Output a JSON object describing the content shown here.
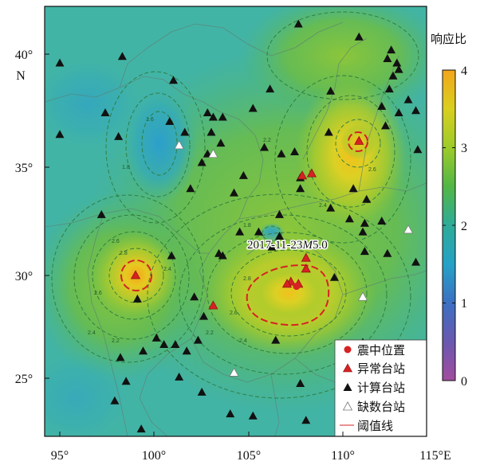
{
  "map": {
    "x_ticks": [
      "95°",
      "100°",
      "105°",
      "110°",
      "115°E"
    ],
    "y_ticks": [
      "40°",
      "35°",
      "30°",
      "25°"
    ],
    "y_unit": "N",
    "lon_range": [
      94.2,
      114.4
    ],
    "lat_range": [
      22.6,
      42.4
    ]
  },
  "colorbar": {
    "title": "响应比",
    "ticks": [
      "4",
      "3",
      "2",
      "1",
      "0"
    ],
    "range": [
      0,
      4
    ],
    "colors": [
      "#f2a61c",
      "#d9cf1e",
      "#9ccb2a",
      "#52b646",
      "#2eab98",
      "#25a2c6",
      "#3b6fc2",
      "#6a58b0",
      "#a24c9e"
    ]
  },
  "annotation": {
    "date": "2017-11-23",
    "mag_letter": "M",
    "mag": "5.0"
  },
  "epicenter": {
    "lon": 107.5,
    "lat": 29.5
  },
  "stations": {
    "abnormal": [
      [
        110.8,
        36.2
      ],
      [
        108.3,
        34.7
      ],
      [
        107.8,
        34.6
      ],
      [
        99.0,
        30.0
      ],
      [
        103.1,
        28.6
      ],
      [
        108.0,
        30.8
      ],
      [
        108.0,
        30.3
      ],
      [
        107.2,
        29.7
      ],
      [
        107.6,
        29.6
      ],
      [
        107.0,
        29.6
      ]
    ],
    "calculated": [
      [
        95.0,
        39.8
      ],
      [
        98.3,
        40.1
      ],
      [
        101.0,
        39.0
      ],
      [
        97.4,
        37.5
      ],
      [
        95.0,
        36.5
      ],
      [
        98.1,
        36.4
      ],
      [
        100.8,
        37.1
      ],
      [
        101.6,
        36.6
      ],
      [
        102.8,
        37.5
      ],
      [
        103.1,
        37.3
      ],
      [
        103.6,
        37.3
      ],
      [
        103.0,
        36.6
      ],
      [
        103.5,
        36.1
      ],
      [
        102.5,
        35.2
      ],
      [
        102.8,
        35.6
      ],
      [
        101.9,
        34.0
      ],
      [
        104.2,
        33.8
      ],
      [
        104.7,
        34.6
      ],
      [
        105.2,
        37.7
      ],
      [
        106.1,
        38.6
      ],
      [
        107.6,
        41.6
      ],
      [
        110.8,
        41.0
      ],
      [
        112.5,
        40.4
      ],
      [
        112.3,
        40.0
      ],
      [
        112.8,
        39.8
      ],
      [
        112.9,
        39.5
      ],
      [
        112.6,
        39.2
      ],
      [
        112.4,
        38.6
      ],
      [
        113.4,
        38.1
      ],
      [
        112.0,
        37.8
      ],
      [
        112.9,
        37.5
      ],
      [
        113.8,
        37.6
      ],
      [
        113.9,
        35.8
      ],
      [
        112.2,
        36.9
      ],
      [
        109.3,
        38.5
      ],
      [
        105.8,
        35.9
      ],
      [
        106.7,
        35.6
      ],
      [
        107.4,
        35.7
      ],
      [
        109.2,
        36.6
      ],
      [
        107.7,
        34.5
      ],
      [
        107.7,
        34.0
      ],
      [
        110.5,
        34.0
      ],
      [
        109.3,
        33.1
      ],
      [
        110.3,
        32.6
      ],
      [
        111.2,
        33.5
      ],
      [
        111.1,
        32.4
      ],
      [
        112.0,
        32.5
      ],
      [
        112.3,
        31.0
      ],
      [
        111.0,
        32.0
      ],
      [
        106.6,
        32.8
      ],
      [
        104.5,
        32.0
      ],
      [
        105.5,
        32.0
      ],
      [
        103.4,
        31.0
      ],
      [
        103.6,
        30.9
      ],
      [
        106.6,
        31.8
      ],
      [
        106.2,
        31.3
      ],
      [
        109.5,
        29.9
      ],
      [
        111.1,
        31.1
      ],
      [
        97.2,
        32.8
      ],
      [
        100.9,
        30.9
      ],
      [
        99.1,
        28.9
      ],
      [
        102.1,
        29.0
      ],
      [
        102.6,
        28.1
      ],
      [
        102.3,
        27.0
      ],
      [
        101.1,
        26.8
      ],
      [
        100.5,
        26.8
      ],
      [
        100.1,
        27.1
      ],
      [
        99.4,
        26.5
      ],
      [
        98.2,
        26.2
      ],
      [
        101.7,
        26.5
      ],
      [
        98.5,
        25.1
      ],
      [
        101.3,
        25.3
      ],
      [
        102.5,
        24.6
      ],
      [
        97.9,
        24.2
      ],
      [
        104.0,
        23.6
      ],
      [
        106.4,
        27.0
      ],
      [
        108.0,
        23.3
      ],
      [
        107.7,
        25.0
      ],
      [
        111.0,
        26.9
      ],
      [
        113.8,
        30.6
      ],
      [
        99.3,
        22.9
      ],
      [
        105.2,
        23.5
      ]
    ],
    "missing": [
      [
        101.3,
        36.0
      ],
      [
        103.1,
        35.6
      ],
      [
        113.4,
        32.1
      ],
      [
        111.0,
        29.0
      ],
      [
        104.2,
        25.5
      ]
    ]
  },
  "contour_labels": [
    "1.6",
    "1.8",
    "2.4",
    "2.6",
    "2.8",
    "2.2"
  ],
  "legend": {
    "items": [
      {
        "label": "震中位置",
        "symbol": "red-circle"
      },
      {
        "label": "异常台站",
        "symbol": "red-triangle"
      },
      {
        "label": "计算台站",
        "symbol": "black-triangle"
      },
      {
        "label": "缺数台站",
        "symbol": "white-triangle"
      },
      {
        "label": "阈值线",
        "symbol": "red-line"
      }
    ]
  },
  "colors": {
    "abnormal": "#d62222",
    "calculated": "#111111",
    "missing": "#ffffff",
    "epicenter": "#d62222",
    "threshold": "#d62222"
  }
}
